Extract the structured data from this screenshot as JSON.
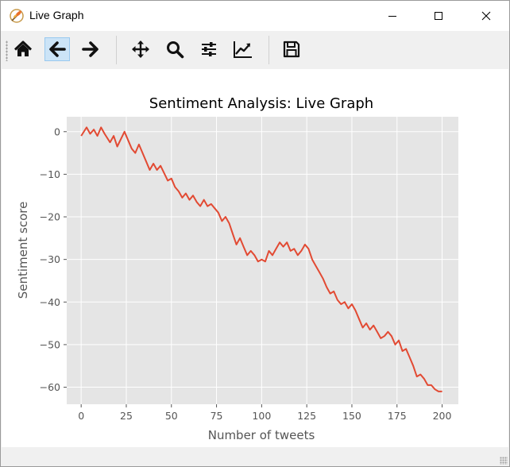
{
  "window": {
    "title": "Live Graph",
    "controls": {
      "minimize": "minimize-icon",
      "maximize": "maximize-icon",
      "close": "close-icon"
    }
  },
  "toolbar": {
    "buttons": [
      {
        "name": "home",
        "icon": "home-icon"
      },
      {
        "name": "back",
        "icon": "arrow-left-icon",
        "active": true
      },
      {
        "name": "forward",
        "icon": "arrow-right-icon"
      },
      {
        "name": "pan",
        "icon": "move-icon"
      },
      {
        "name": "zoom",
        "icon": "magnifier-icon"
      },
      {
        "name": "subplots",
        "icon": "sliders-icon"
      },
      {
        "name": "edit-axis",
        "icon": "line-chart-icon"
      },
      {
        "name": "save",
        "icon": "floppy-disk-icon"
      }
    ]
  },
  "chart_data": {
    "type": "line",
    "title": "Sentiment Analysis: Live Graph",
    "xlabel": "Number of tweets",
    "ylabel": "Sentiment score",
    "xlim": [
      -8,
      209
    ],
    "ylim": [
      -64,
      3.5
    ],
    "xticks": [
      0,
      25,
      50,
      75,
      100,
      125,
      150,
      175,
      200
    ],
    "yticks": [
      0,
      -10,
      -20,
      -30,
      -40,
      -50,
      -60
    ],
    "grid": true,
    "line_color": "#e24a33",
    "background": "#e5e5e5",
    "series": [
      {
        "x": [
          0,
          3,
          5,
          7,
          9,
          11,
          13,
          16,
          18,
          20,
          24,
          28,
          30,
          32,
          36,
          38,
          40,
          42,
          44,
          48,
          50,
          52,
          54,
          56,
          58,
          60,
          62,
          64,
          66,
          68,
          70,
          72,
          74,
          76,
          78,
          80,
          82,
          84,
          86,
          88,
          90,
          92,
          94,
          96,
          98,
          100,
          102,
          104,
          106,
          108,
          110,
          112,
          114,
          116,
          118,
          120,
          122,
          124,
          126,
          128,
          130,
          132,
          134,
          136,
          138,
          140,
          142,
          144,
          146,
          148,
          150,
          152,
          154,
          156,
          158,
          160,
          162,
          164,
          166,
          168,
          170,
          172,
          174,
          176,
          178,
          180,
          182,
          184,
          186,
          188,
          190,
          192,
          194,
          196,
          198,
          200
        ],
        "y": [
          -1,
          1,
          -0.5,
          0.5,
          -1,
          1,
          -0.5,
          -2.5,
          -1,
          -3.5,
          0,
          -4,
          -5,
          -3,
          -7,
          -9,
          -7.5,
          -9,
          -8,
          -11.5,
          -11,
          -13,
          -14,
          -15.5,
          -14.5,
          -16,
          -15,
          -16.5,
          -17.5,
          -16,
          -17.5,
          -17,
          -18,
          -19,
          -21,
          -20,
          -21.5,
          -24,
          -26.5,
          -25,
          -27,
          -29,
          -28,
          -29,
          -30.5,
          -30,
          -30.5,
          -28,
          -29,
          -27.5,
          -26,
          -27,
          -26,
          -28,
          -27.5,
          -29,
          -28,
          -26.5,
          -27.5,
          -30,
          -31.5,
          -33,
          -34.5,
          -36.5,
          -38,
          -37.5,
          -39.5,
          -40.5,
          -40,
          -41.5,
          -40.5,
          -42,
          -44,
          -46,
          -45,
          -46.5,
          -45.5,
          -47,
          -48.5,
          -48,
          -47,
          -48,
          -50,
          -49,
          -51.5,
          -51,
          -53,
          -55,
          -57.5,
          -57,
          -58,
          -59.5,
          -59.5,
          -60.5,
          -61,
          -61
        ]
      }
    ]
  }
}
